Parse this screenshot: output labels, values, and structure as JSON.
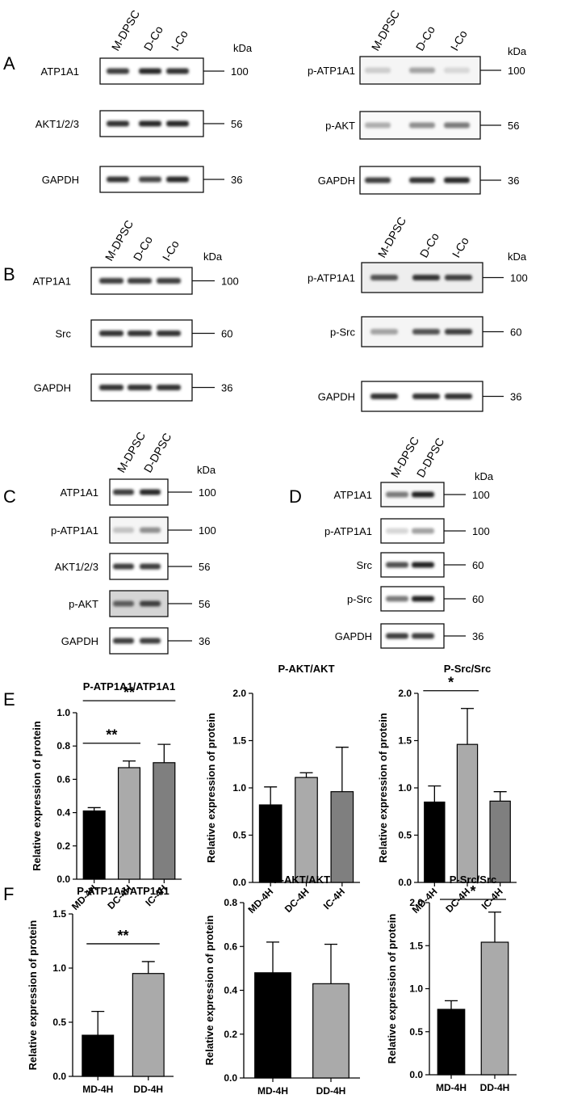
{
  "panel_letters": [
    "A",
    "B",
    "C",
    "D",
    "E",
    "F"
  ],
  "blots": {
    "kda_label": "kDa",
    "A_left": {
      "lanes": [
        "M-DPSC",
        "D-Co",
        "I-Co"
      ],
      "rows": [
        {
          "label": "ATP1A1",
          "kda": "100"
        },
        {
          "label": "AKT1/2/3",
          "kda": "56"
        },
        {
          "label": "GAPDH",
          "kda": "36"
        }
      ]
    },
    "A_right": {
      "lanes": [
        "M-DPSC",
        "D-Co",
        "I-Co"
      ],
      "rows": [
        {
          "label": "p-ATP1A1",
          "kda": "100"
        },
        {
          "label": "p-AKT",
          "kda": "56"
        },
        {
          "label": "GAPDH",
          "kda": "36"
        }
      ]
    },
    "B_left": {
      "lanes": [
        "M-DPSC",
        "D-Co",
        "I-Co"
      ],
      "rows": [
        {
          "label": "ATP1A1",
          "kda": "100"
        },
        {
          "label": "Src",
          "kda": "60"
        },
        {
          "label": "GAPDH",
          "kda": "36"
        }
      ]
    },
    "B_right": {
      "lanes": [
        "M-DPSC",
        "D-Co",
        "I-Co"
      ],
      "rows": [
        {
          "label": "p-ATP1A1",
          "kda": "100"
        },
        {
          "label": "p-Src",
          "kda": "60"
        },
        {
          "label": "GAPDH",
          "kda": "36"
        }
      ]
    },
    "C": {
      "lanes": [
        "M-DPSC",
        "D-DPSC"
      ],
      "rows": [
        {
          "label": "ATP1A1",
          "kda": "100"
        },
        {
          "label": "p-ATP1A1",
          "kda": "100"
        },
        {
          "label": "AKT1/2/3",
          "kda": "56"
        },
        {
          "label": "p-AKT",
          "kda": "56"
        },
        {
          "label": "GAPDH",
          "kda": "36"
        }
      ]
    },
    "D": {
      "lanes": [
        "M-DPSC",
        "D-DPSC"
      ],
      "rows": [
        {
          "label": "ATP1A1",
          "kda": "100"
        },
        {
          "label": "p-ATP1A1",
          "kda": "100"
        },
        {
          "label": "Src",
          "kda": "60"
        },
        {
          "label": "p-Src",
          "kda": "60"
        },
        {
          "label": "GAPDH",
          "kda": "36"
        }
      ]
    }
  },
  "chart_data": [
    {
      "panel": "E",
      "type": "bar",
      "title": "P-ATP1A1/ATP1A1",
      "ylabel": "Relative expression of protein",
      "ylim": [
        0,
        1.0
      ],
      "yticks": [
        "0.0",
        "0.2",
        "0.4",
        "0.6",
        "0.8",
        "1.0"
      ],
      "categories": [
        "MD-4H",
        "DC-4H",
        "IC-4H"
      ],
      "values": [
        0.41,
        0.67,
        0.7
      ],
      "errors": [
        0.02,
        0.04,
        0.11
      ],
      "bar_colors": [
        "#000000",
        "#aaaaaa",
        "#7f7f7f"
      ],
      "significance": [
        {
          "from": 0,
          "to": 1,
          "label": "**"
        },
        {
          "from": 0,
          "to": 2,
          "label": "**"
        }
      ]
    },
    {
      "panel": "E",
      "type": "bar",
      "title": "P-AKT/AKT",
      "ylabel": "Relative expression of protein",
      "ylim": [
        0,
        2.0
      ],
      "yticks": [
        "0.0",
        "0.5",
        "1.0",
        "1.5",
        "2.0"
      ],
      "categories": [
        "MD-4H",
        "DC-4H",
        "IC-4H"
      ],
      "values": [
        0.82,
        1.11,
        0.96
      ],
      "errors": [
        0.19,
        0.05,
        0.47
      ],
      "bar_colors": [
        "#000000",
        "#aaaaaa",
        "#7f7f7f"
      ],
      "significance": []
    },
    {
      "panel": "E",
      "type": "bar",
      "title": "P-Src/Src",
      "ylabel": "Relative expression of protein",
      "ylim": [
        0,
        2.0
      ],
      "yticks": [
        "0.0",
        "0.5",
        "1.0",
        "1.5",
        "2.0"
      ],
      "categories": [
        "MD-4H",
        "DC-4H",
        "IC-4H"
      ],
      "values": [
        0.85,
        1.46,
        0.86
      ],
      "errors": [
        0.17,
        0.38,
        0.1
      ],
      "bar_colors": [
        "#000000",
        "#aaaaaa",
        "#7f7f7f"
      ],
      "significance": [
        {
          "from": 0,
          "to": 1,
          "label": "*"
        }
      ]
    },
    {
      "panel": "F",
      "type": "bar",
      "title": "P-ATP1A1/ATP1A1",
      "ylabel": "Relative expression of protein",
      "ylim": [
        0,
        1.5
      ],
      "yticks": [
        "0.0",
        "0.5",
        "1.0",
        "1.5"
      ],
      "categories": [
        "MD-4H",
        "DD-4H"
      ],
      "values": [
        0.38,
        0.95
      ],
      "errors": [
        0.22,
        0.11
      ],
      "bar_colors": [
        "#000000",
        "#aaaaaa"
      ],
      "significance": [
        {
          "from": 0,
          "to": 1,
          "label": "**"
        }
      ]
    },
    {
      "panel": "F",
      "type": "bar",
      "title": "P-AKT/AKT",
      "ylabel": "Relative expression of protein",
      "ylim": [
        0,
        0.8
      ],
      "yticks": [
        "0.0",
        "0.2",
        "0.4",
        "0.6",
        "0.8"
      ],
      "categories": [
        "MD-4H",
        "DD-4H"
      ],
      "values": [
        0.48,
        0.43
      ],
      "errors": [
        0.14,
        0.18
      ],
      "bar_colors": [
        "#000000",
        "#aaaaaa"
      ],
      "significance": []
    },
    {
      "panel": "F",
      "type": "bar",
      "title": "P-Src/Src",
      "ylabel": "Relative expression of protein",
      "ylim": [
        0,
        2.0
      ],
      "yticks": [
        "0.0",
        "0.5",
        "1.0",
        "1.5",
        "2.0"
      ],
      "categories": [
        "MD-4H",
        "DD-4H"
      ],
      "values": [
        0.76,
        1.54
      ],
      "errors": [
        0.1,
        0.35
      ],
      "bar_colors": [
        "#000000",
        "#aaaaaa"
      ],
      "significance": [
        {
          "from": 0,
          "to": 1,
          "label": "*"
        }
      ]
    }
  ]
}
